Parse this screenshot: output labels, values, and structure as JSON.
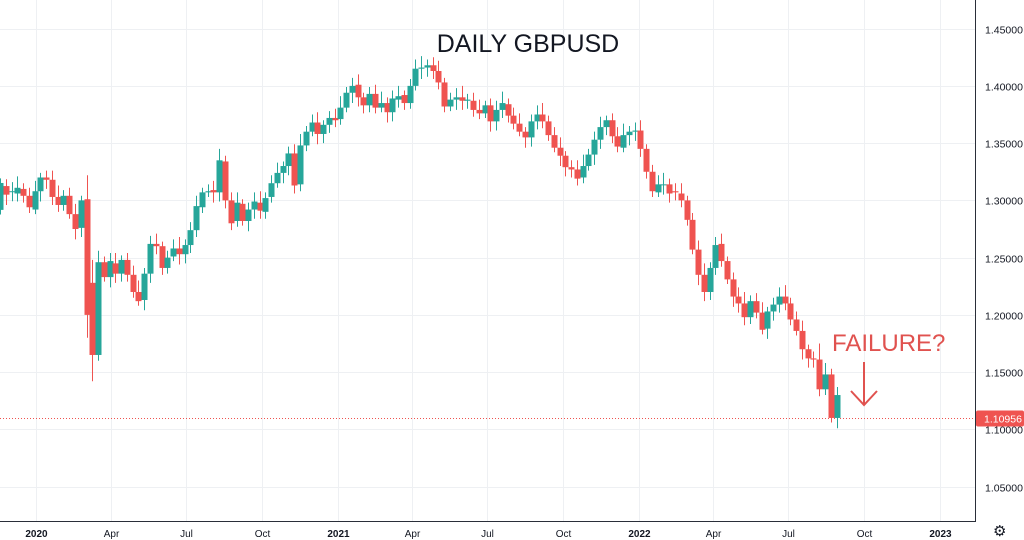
{
  "chart_data": {
    "type": "candlestick",
    "title": "DAILY GBPUSD",
    "yticks": [
      1.05,
      1.1,
      1.15,
      1.2,
      1.25,
      1.3,
      1.35,
      1.4,
      1.45
    ],
    "ytick_labels": [
      "1.05000",
      "1.10000",
      "1.15000",
      "1.20000",
      "1.25000",
      "1.30000",
      "1.35000",
      "1.40000",
      "1.45000"
    ],
    "ylim": [
      1.02,
      1.475
    ],
    "xlim": [
      "2019-11-18",
      "2023-02-13"
    ],
    "xticks": [
      {
        "label": "2020",
        "date": "2020-01-01",
        "year": true
      },
      {
        "label": "Apr",
        "date": "2020-04-01",
        "year": false
      },
      {
        "label": "Jul",
        "date": "2020-07-01",
        "year": false
      },
      {
        "label": "Oct",
        "date": "2020-10-01",
        "year": false
      },
      {
        "label": "2021",
        "date": "2021-01-01",
        "year": true
      },
      {
        "label": "Apr",
        "date": "2021-04-01",
        "year": false
      },
      {
        "label": "Jul",
        "date": "2021-07-01",
        "year": false
      },
      {
        "label": "Oct",
        "date": "2021-10-01",
        "year": false
      },
      {
        "label": "2022",
        "date": "2022-01-01",
        "year": true
      },
      {
        "label": "Apr",
        "date": "2022-04-01",
        "year": false
      },
      {
        "label": "Jul",
        "date": "2022-07-01",
        "year": false
      },
      {
        "label": "Oct",
        "date": "2022-10-01",
        "year": false
      },
      {
        "label": "2023",
        "date": "2023-01-01",
        "year": true
      }
    ],
    "current_price": "1.10956",
    "current_price_value": 1.10956,
    "annotation": "FAILURE?",
    "grid": true,
    "up_color": "#26a69a",
    "down_color": "#ef5350",
    "start_date": "2019-11-18",
    "close_points": [
      [
        1.2917,
        1.3152
      ],
      [
        1.3125,
        1.305
      ],
      [
        1.3072,
        1.308
      ],
      [
        1.306,
        1.311
      ],
      [
        1.31,
        1.304
      ],
      [
        1.304,
        1.294
      ],
      [
        1.292,
        1.308
      ],
      [
        1.308,
        1.32
      ],
      [
        1.32,
        1.318
      ],
      [
        1.318,
        1.303
      ],
      [
        1.303,
        1.296
      ],
      [
        1.296,
        1.304
      ],
      [
        1.304,
        1.288
      ],
      [
        1.288,
        1.275
      ],
      [
        1.276,
        1.3
      ],
      [
        1.301,
        1.2
      ],
      [
        1.228,
        1.165
      ],
      [
        1.165,
        1.246
      ],
      [
        1.246,
        1.233
      ],
      [
        1.233,
        1.247
      ],
      [
        1.245,
        1.236
      ],
      [
        1.236,
        1.248
      ],
      [
        1.248,
        1.235
      ],
      [
        1.235,
        1.22
      ],
      [
        1.22,
        1.212
      ],
      [
        1.213,
        1.236
      ],
      [
        1.236,
        1.262
      ],
      [
        1.262,
        1.26
      ],
      [
        1.26,
        1.241
      ],
      [
        1.241,
        1.25
      ],
      [
        1.251,
        1.258
      ],
      [
        1.258,
        1.253
      ],
      [
        1.253,
        1.261
      ],
      [
        1.261,
        1.274
      ],
      [
        1.274,
        1.295
      ],
      [
        1.294,
        1.307
      ],
      [
        1.307,
        1.308
      ],
      [
        1.309,
        1.307
      ],
      [
        1.307,
        1.335
      ],
      [
        1.334,
        1.3
      ],
      [
        1.3,
        1.28
      ],
      [
        1.282,
        1.298
      ],
      [
        1.297,
        1.282
      ],
      [
        1.282,
        1.292
      ],
      [
        1.292,
        1.299
      ],
      [
        1.298,
        1.291
      ],
      [
        1.29,
        1.302
      ],
      [
        1.303,
        1.315
      ],
      [
        1.315,
        1.324
      ],
      [
        1.324,
        1.33
      ],
      [
        1.33,
        1.341
      ],
      [
        1.341,
        1.313
      ],
      [
        1.314,
        1.348
      ],
      [
        1.348,
        1.36
      ],
      [
        1.36,
        1.368
      ],
      [
        1.368,
        1.358
      ],
      [
        1.358,
        1.366
      ],
      [
        1.366,
        1.372
      ],
      [
        1.372,
        1.37
      ],
      [
        1.371,
        1.381
      ],
      [
        1.381,
        1.394
      ],
      [
        1.394,
        1.4
      ],
      [
        1.401,
        1.39
      ],
      [
        1.39,
        1.383
      ],
      [
        1.383,
        1.393
      ],
      [
        1.393,
        1.381
      ],
      [
        1.381,
        1.385
      ],
      [
        1.385,
        1.377
      ],
      [
        1.377,
        1.389
      ],
      [
        1.388,
        1.391
      ],
      [
        1.392,
        1.385
      ],
      [
        1.385,
        1.4
      ],
      [
        1.4,
        1.415
      ],
      [
        1.415,
        1.416
      ],
      [
        1.416,
        1.418
      ],
      [
        1.418,
        1.413
      ],
      [
        1.413,
        1.403
      ],
      [
        1.403,
        1.382
      ],
      [
        1.382,
        1.388
      ],
      [
        1.388,
        1.39
      ],
      [
        1.39,
        1.387
      ],
      [
        1.387,
        1.388
      ],
      [
        1.387,
        1.379
      ],
      [
        1.379,
        1.376
      ],
      [
        1.376,
        1.383
      ],
      [
        1.383,
        1.369
      ],
      [
        1.369,
        1.379
      ],
      [
        1.379,
        1.385
      ],
      [
        1.384,
        1.374
      ],
      [
        1.374,
        1.367
      ],
      [
        1.367,
        1.36
      ],
      [
        1.36,
        1.355
      ],
      [
        1.355,
        1.369
      ],
      [
        1.369,
        1.375
      ],
      [
        1.375,
        1.369
      ],
      [
        1.369,
        1.357
      ],
      [
        1.357,
        1.346
      ],
      [
        1.346,
        1.339
      ],
      [
        1.339,
        1.329
      ],
      [
        1.329,
        1.327
      ],
      [
        1.327,
        1.319
      ],
      [
        1.32,
        1.33
      ],
      [
        1.33,
        1.34
      ],
      [
        1.34,
        1.353
      ],
      [
        1.353,
        1.364
      ],
      [
        1.364,
        1.37
      ],
      [
        1.37,
        1.356
      ],
      [
        1.356,
        1.347
      ],
      [
        1.346,
        1.357
      ],
      [
        1.357,
        1.36
      ],
      [
        1.36,
        1.361
      ],
      [
        1.361,
        1.345
      ],
      [
        1.345,
        1.325
      ],
      [
        1.325,
        1.308
      ],
      [
        1.307,
        1.314
      ],
      [
        1.314,
        1.314
      ],
      [
        1.314,
        1.306
      ],
      [
        1.308,
        1.307
      ],
      [
        1.306,
        1.3
      ],
      [
        1.3,
        1.283
      ],
      [
        1.283,
        1.257
      ],
      [
        1.257,
        1.235
      ],
      [
        1.235,
        1.22
      ],
      [
        1.22,
        1.241
      ],
      [
        1.241,
        1.261
      ],
      [
        1.262,
        1.247
      ],
      [
        1.247,
        1.231
      ],
      [
        1.231,
        1.216
      ],
      [
        1.216,
        1.21
      ],
      [
        1.21,
        1.198
      ],
      [
        1.198,
        1.212
      ],
      [
        1.212,
        1.202
      ],
      [
        1.202,
        1.187
      ],
      [
        1.188,
        1.203
      ],
      [
        1.203,
        1.209
      ],
      [
        1.209,
        1.216
      ],
      [
        1.216,
        1.21
      ],
      [
        1.21,
        1.196
      ],
      [
        1.196,
        1.186
      ],
      [
        1.186,
        1.17
      ],
      [
        1.17,
        1.162
      ],
      [
        1.162,
        1.161
      ],
      [
        1.161,
        1.135
      ],
      [
        1.135,
        1.148
      ],
      [
        1.148,
        1.11
      ],
      [
        1.11,
        1.13
      ]
    ]
  },
  "settings_icon": "gear-icon"
}
